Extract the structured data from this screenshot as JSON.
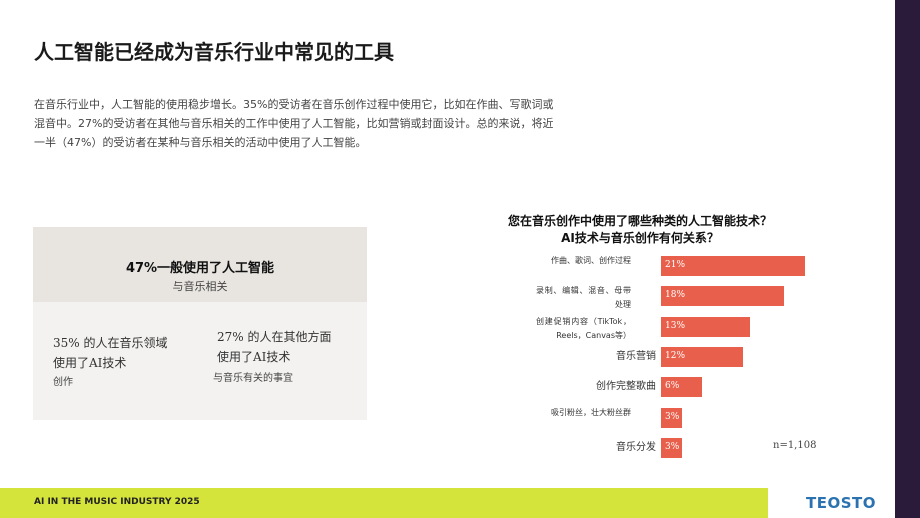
{
  "slide": {
    "title": "人工智能已经成为音乐行业中常见的工具",
    "paragraph": "在音乐行业中，人工智能的使用稳步增长。35%的受访者在音乐创作过程中使用它，比如在作曲、写歌词或混音中。27%的受访者在其他与音乐相关的工作中使用了人工智能，比如营销或封面设计。总的来说，将近一半（47%）的受访者在某种与音乐相关的活动中使用了人工智能。",
    "box": {
      "headline": "47%一般使用了人工智能",
      "headline_sub": "与音乐相关",
      "left": "35% 的人在音乐领域使用了AI技术",
      "left_sub": "创作",
      "right": "27% 的人在其他方面使用了AI技术",
      "right_sub": "与音乐有关的事宜"
    },
    "footer": "AI IN THE MUSIC INDUSTRY 2025",
    "logo": "TEOSTO"
  },
  "chart_data": {
    "type": "bar",
    "orientation": "horizontal",
    "title": "您在音乐创作中使用了哪些种类的人工智能技术？\nAI技术与音乐创作有何关系？",
    "categories": [
      "作曲、歌词、创作过程",
      "录制、编辑、混音、母带处理",
      "创建促销内容（TikTok，Reels，Canvas等）",
      "音乐营销",
      "创作完整歌曲",
      "吸引粉丝，壮大粉丝群",
      "音乐分发"
    ],
    "values": [
      21,
      18,
      13,
      12,
      6,
      3,
      3
    ],
    "value_labels": [
      "21%",
      "18%",
      "13%",
      "12%",
      "6%",
      "3%",
      "3%"
    ],
    "color": "#e8604c",
    "note": "n=1,108"
  }
}
